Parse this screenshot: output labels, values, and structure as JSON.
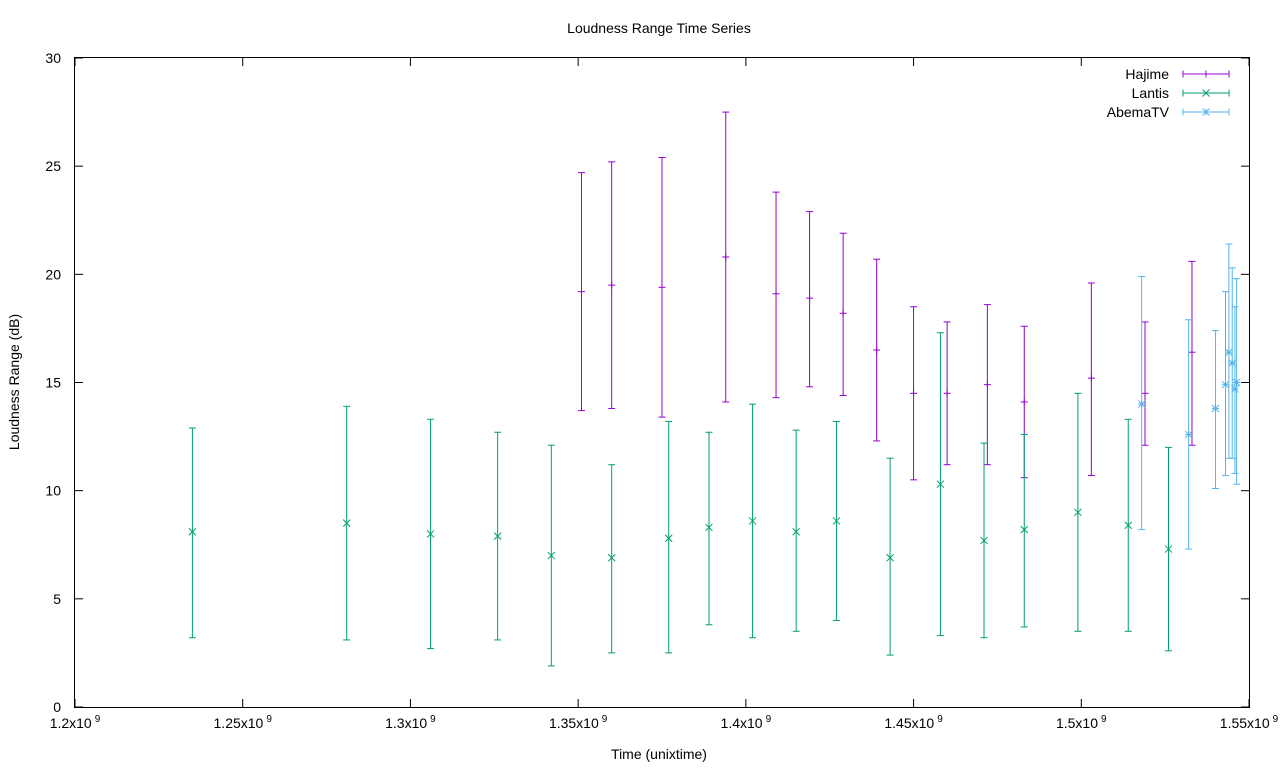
{
  "chart_data": {
    "type": "scatter",
    "title": "Loudness Range Time Series",
    "xlabel": "Time (unixtime)",
    "ylabel": "Loudness Range (dB)",
    "xlim": [
      1200000000,
      1550000000
    ],
    "ylim": [
      0,
      30
    ],
    "x_ticks": [
      {
        "value": 1200000000,
        "mant": "1.2x10",
        "exp": "9"
      },
      {
        "value": 1250000000,
        "mant": "1.25x10",
        "exp": "9"
      },
      {
        "value": 1300000000,
        "mant": "1.3x10",
        "exp": "9"
      },
      {
        "value": 1350000000,
        "mant": "1.35x10",
        "exp": "9"
      },
      {
        "value": 1400000000,
        "mant": "1.4x10",
        "exp": "9"
      },
      {
        "value": 1450000000,
        "mant": "1.45x10",
        "exp": "9"
      },
      {
        "value": 1500000000,
        "mant": "1.5x10",
        "exp": "9"
      },
      {
        "value": 1550000000,
        "mant": "1.55x10",
        "exp": "9"
      }
    ],
    "y_ticks": [
      0,
      5,
      10,
      15,
      20,
      25,
      30
    ],
    "grid": false,
    "legend_position": "top-right",
    "series": [
      {
        "name": "Hajime",
        "color": "#9400d3",
        "marker": "plus",
        "points": [
          {
            "x": 1351000000,
            "y": 19.2,
            "low": 13.7,
            "high": 24.7
          },
          {
            "x": 1360000000,
            "y": 19.5,
            "low": 13.8,
            "high": 25.2
          },
          {
            "x": 1375000000,
            "y": 19.4,
            "low": 13.4,
            "high": 25.4
          },
          {
            "x": 1394000000,
            "y": 20.8,
            "low": 14.1,
            "high": 27.5
          },
          {
            "x": 1409000000,
            "y": 19.1,
            "low": 14.3,
            "high": 23.8
          },
          {
            "x": 1419000000,
            "y": 18.9,
            "low": 14.8,
            "high": 22.9
          },
          {
            "x": 1429000000,
            "y": 18.2,
            "low": 14.4,
            "high": 21.9
          },
          {
            "x": 1439000000,
            "y": 16.5,
            "low": 12.3,
            "high": 20.7
          },
          {
            "x": 1450000000,
            "y": 14.5,
            "low": 10.5,
            "high": 18.5
          },
          {
            "x": 1460000000,
            "y": 14.5,
            "low": 11.2,
            "high": 17.8
          },
          {
            "x": 1472000000,
            "y": 14.9,
            "low": 11.2,
            "high": 18.6
          },
          {
            "x": 1483000000,
            "y": 14.1,
            "low": 10.6,
            "high": 17.6
          },
          {
            "x": 1503000000,
            "y": 15.2,
            "low": 10.7,
            "high": 19.6
          },
          {
            "x": 1519000000,
            "y": 14.5,
            "low": 12.1,
            "high": 17.8
          },
          {
            "x": 1533000000,
            "y": 16.4,
            "low": 12.1,
            "high": 20.6
          }
        ]
      },
      {
        "name": "Lantis",
        "color": "#009e73",
        "marker": "cross",
        "points": [
          {
            "x": 1235000000,
            "y": 8.1,
            "low": 3.2,
            "high": 12.9
          },
          {
            "x": 1281000000,
            "y": 8.5,
            "low": 3.1,
            "high": 13.9
          },
          {
            "x": 1306000000,
            "y": 8.0,
            "low": 2.7,
            "high": 13.3
          },
          {
            "x": 1326000000,
            "y": 7.9,
            "low": 3.1,
            "high": 12.7
          },
          {
            "x": 1342000000,
            "y": 7.0,
            "low": 1.9,
            "high": 12.1
          },
          {
            "x": 1360000000,
            "y": 6.9,
            "low": 2.5,
            "high": 11.2
          },
          {
            "x": 1377000000,
            "y": 7.8,
            "low": 2.5,
            "high": 13.2
          },
          {
            "x": 1389000000,
            "y": 8.3,
            "low": 3.8,
            "high": 12.7
          },
          {
            "x": 1402000000,
            "y": 8.6,
            "low": 3.2,
            "high": 14.0
          },
          {
            "x": 1415000000,
            "y": 8.1,
            "low": 3.5,
            "high": 12.8
          },
          {
            "x": 1427000000,
            "y": 8.6,
            "low": 4.0,
            "high": 13.2
          },
          {
            "x": 1443000000,
            "y": 6.9,
            "low": 2.4,
            "high": 11.5
          },
          {
            "x": 1458000000,
            "y": 10.3,
            "low": 3.3,
            "high": 17.3
          },
          {
            "x": 1471000000,
            "y": 7.7,
            "low": 3.2,
            "high": 12.2
          },
          {
            "x": 1483000000,
            "y": 8.2,
            "low": 3.7,
            "high": 12.6
          },
          {
            "x": 1499000000,
            "y": 9.0,
            "low": 3.5,
            "high": 14.5
          },
          {
            "x": 1514000000,
            "y": 8.4,
            "low": 3.5,
            "high": 13.3
          },
          {
            "x": 1526000000,
            "y": 7.3,
            "low": 2.6,
            "high": 12.0
          }
        ]
      },
      {
        "name": "AbemaTV",
        "color": "#56b4e9",
        "marker": "star",
        "points": [
          {
            "x": 1518000000,
            "y": 14.0,
            "low": 8.2,
            "high": 19.9
          },
          {
            "x": 1532000000,
            "y": 12.6,
            "low": 7.3,
            "high": 17.9
          },
          {
            "x": 1540000000,
            "y": 13.8,
            "low": 10.1,
            "high": 17.4
          },
          {
            "x": 1543000000,
            "y": 14.9,
            "low": 10.7,
            "high": 19.2
          },
          {
            "x": 1544000000,
            "y": 16.4,
            "low": 11.5,
            "high": 21.4
          },
          {
            "x": 1545000000,
            "y": 15.9,
            "low": 11.5,
            "high": 20.3
          },
          {
            "x": 1545800000,
            "y": 14.7,
            "low": 10.8,
            "high": 18.5
          },
          {
            "x": 1546300000,
            "y": 15.0,
            "low": 10.3,
            "high": 19.8
          }
        ]
      }
    ]
  }
}
